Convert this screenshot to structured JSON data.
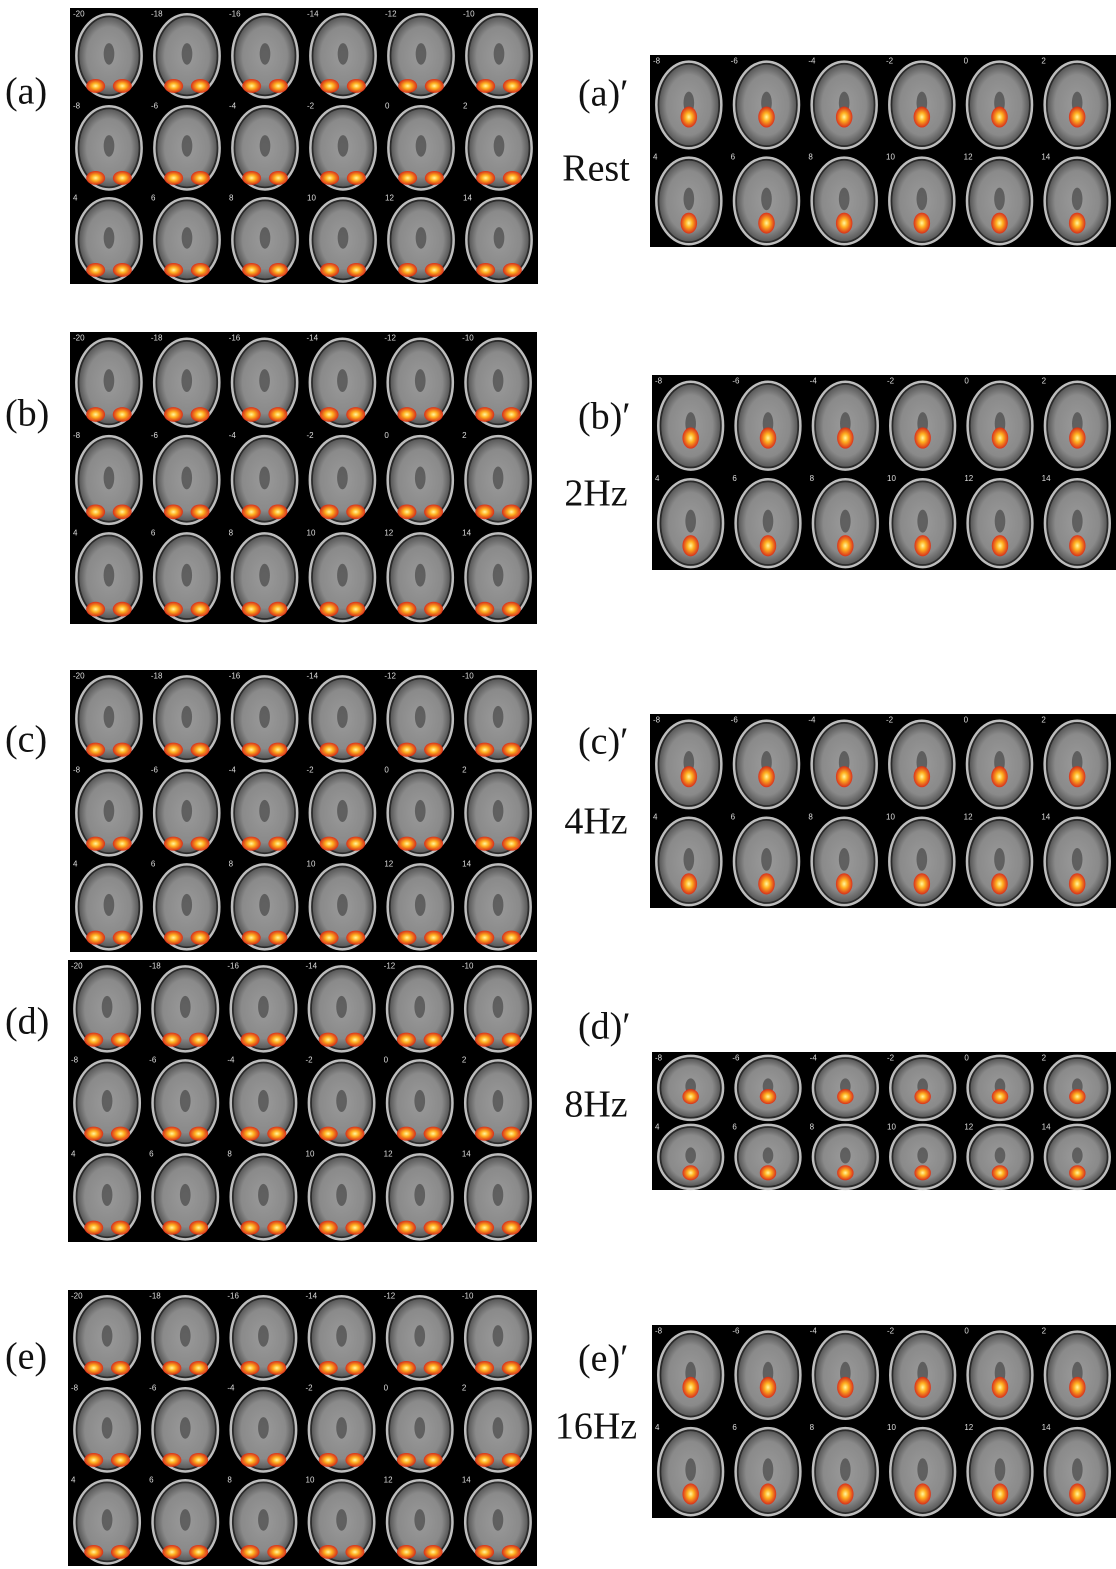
{
  "panels": [
    {
      "label": "(a)",
      "right_label": "(a)′",
      "condition": "Rest"
    },
    {
      "label": "(b)",
      "right_label": "(b)′",
      "condition": "2Hz"
    },
    {
      "label": "(c)",
      "right_label": "(c)′",
      "condition": "4Hz"
    },
    {
      "label": "(d)",
      "right_label": "(d)′",
      "condition": "8Hz"
    },
    {
      "label": "(e)",
      "right_label": "(e)′",
      "condition": "16Hz"
    }
  ],
  "left_slice_labels": [
    [
      -20,
      -18,
      -16,
      -14,
      -12,
      -10
    ],
    [
      -8,
      -6,
      -4,
      -2,
      0,
      2
    ],
    [
      4,
      6,
      8,
      10,
      12,
      14
    ]
  ],
  "right_slice_labels": [
    [
      -8,
      -6,
      -4,
      -2,
      0,
      2
    ],
    [
      4,
      6,
      8,
      10,
      12,
      14
    ]
  ]
}
